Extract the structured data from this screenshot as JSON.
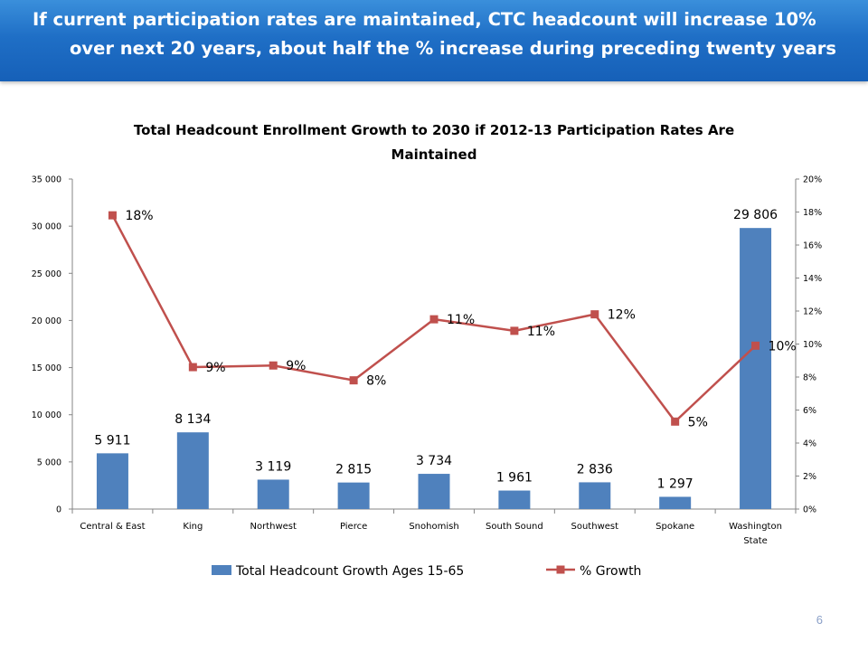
{
  "slide": {
    "heading_line1": "If current participation rates are maintained, CTC headcount will increase 10%",
    "heading_line2": "over next 20 years, about half the % increase during preceding twenty years",
    "page_number": "6"
  },
  "colors": {
    "banner": "#1f6fc6",
    "bar": "#4f81bd",
    "line": "#c0504d"
  },
  "chart_data": {
    "type": "bar",
    "title_line1": "Total Headcount Enrollment Growth to 2030 if 2012-13 Participation Rates Are",
    "title_line2": "Maintained",
    "categories": [
      "Central & East",
      "King",
      "Northwest",
      "Pierce",
      "Snohomish",
      "South Sound",
      "Southwest",
      "Spokane",
      "Washington State"
    ],
    "series": [
      {
        "name": "Total Headcount Growth Ages 15-65",
        "type": "bar",
        "axis": "left",
        "values": [
          5911,
          8134,
          3119,
          2815,
          3734,
          1961,
          2836,
          1297,
          29806
        ],
        "labels": [
          "5 911",
          "8 134",
          "3 119",
          "2 815",
          "3 734",
          "1 961",
          "2 836",
          "1 297",
          "29 806"
        ]
      },
      {
        "name": "% Growth",
        "type": "line",
        "axis": "right",
        "values": [
          0.178,
          0.086,
          0.087,
          0.078,
          0.115,
          0.108,
          0.118,
          0.053,
          0.099
        ],
        "labels": [
          "18%",
          "9%",
          "9%",
          "8%",
          "11%",
          "11%",
          "12%",
          "5%",
          "10%"
        ]
      }
    ],
    "y_left": {
      "min": 0,
      "max": 35000,
      "ticks": [
        "0",
        "5 000",
        "10 000",
        "15 000",
        "20 000",
        "25 000",
        "30 000",
        "35 000"
      ]
    },
    "y_right": {
      "min": 0,
      "max": 0.2,
      "ticks": [
        "0%",
        "2%",
        "4%",
        "6%",
        "8%",
        "10%",
        "12%",
        "14%",
        "16%",
        "18%",
        "20%"
      ]
    },
    "grid": false,
    "legend": "bottom"
  }
}
